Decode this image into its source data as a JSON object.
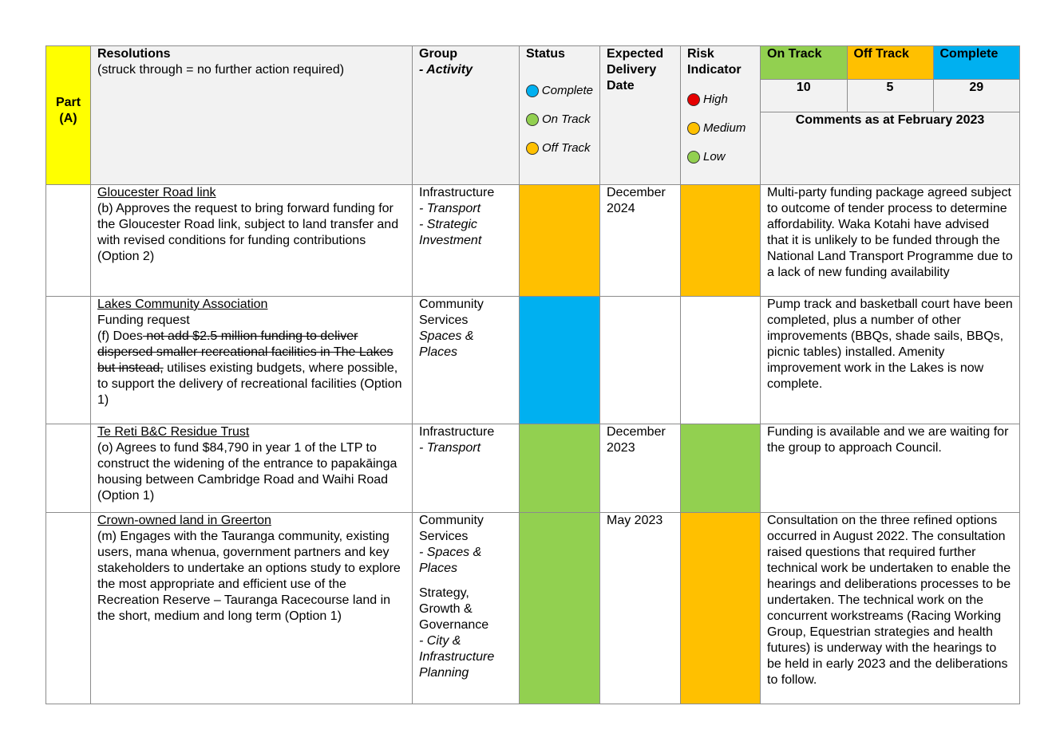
{
  "header": {
    "part": "Part (A)",
    "resolutions": "Resolutions",
    "resolutions_note": "(struck through = no further action required)",
    "group": "Group",
    "activity": "- Activity",
    "status": "Status",
    "status_legend": [
      {
        "label": "Complete",
        "color": "#00b0f0"
      },
      {
        "label": "On Track",
        "color": "#92d050"
      },
      {
        "label": "Off Track",
        "color": "#ffc000"
      }
    ],
    "expected_delivery_date": "Expected Delivery Date",
    "risk_indicator": "Risk Indicator",
    "risk_legend": [
      {
        "label": "High",
        "color": "#e60000"
      },
      {
        "label": "Medium",
        "color": "#ffc000"
      },
      {
        "label": "Low",
        "color": "#92d050"
      }
    ],
    "summary": [
      {
        "label": "On Track",
        "count": "10",
        "color": "#92d050"
      },
      {
        "label": "Off Track",
        "count": "5",
        "color": "#ffc000"
      },
      {
        "label": "Complete",
        "count": "29",
        "color": "#00b0f0"
      }
    ],
    "comments_title": "Comments as at February 2023"
  },
  "rows": [
    {
      "title": "Gloucester Road link",
      "text_before": "(b) Approves the request to bring forward funding for the Gloucester Road link, subject to land transfer and with revised conditions for funding contributions (Option 2)",
      "group_main": "Infrastructure",
      "group_activity_lines": [
        "- Transport",
        "- Strategic Investment"
      ],
      "status_color": "#ffc000",
      "date": "December 2024",
      "risk_color": "#ffc000",
      "comment": "Multi-party funding package agreed subject to outcome of tender process to determine affordability. Waka Kotahi have advised that it is unlikely to be funded through the National Land Transport Programme due to a lack of new funding availability"
    },
    {
      "title": "Lakes Community Association",
      "subtitle": "Funding request",
      "text_before": "(f) Does",
      "text_struck": " not add $2.5 million funding to deliver dispersed smaller recreational facilities in The Lakes but instead,",
      "text_after": " utilises existing budgets, where possible, to support the delivery of recreational facilities (Option 1)",
      "group_main": "Community Services",
      "group_activity_lines": [
        "Spaces & Places"
      ],
      "status_color": "#00b0f0",
      "date": "",
      "risk_color": "#ffffff",
      "comment": "Pump track and basketball court have been completed, plus a number of other improvements (BBQs, shade sails, BBQs, picnic tables) installed. Amenity improvement work in the Lakes is now complete."
    },
    {
      "title": "Te Reti B&C Residue Trust",
      "text_before": "(o) Agrees to fund $84,790 in year 1 of the LTP to construct the widening of the entrance to papakāinga housing between Cambridge Road and Waihi Road (Option 1)",
      "group_main": "Infrastructure",
      "group_activity_lines": [
        "- Transport"
      ],
      "status_color": "#92d050",
      "date": "December 2023",
      "risk_color": "#92d050",
      "comment": "Funding is available and we are waiting for the group to approach Council."
    },
    {
      "title": "Crown-owned land in Greerton",
      "text_before": "(m)   Engages with the Tauranga community, existing users, mana whenua, government partners and key stakeholders to undertake an options study to explore the most appropriate and efficient use of the Recreation Reserve – Tauranga Racecourse land in the short, medium and long term (Option 1)",
      "group_main": "Community Services",
      "group_activity_lines": [
        "- Spaces & Places"
      ],
      "group2_main": "Strategy, Growth & Governance",
      "group2_activity_lines": [
        "- City & Infrastructure Planning"
      ],
      "status_color": "#92d050",
      "date": "May 2023",
      "risk_color": "#ffc000",
      "comment": "Consultation on the three refined options occurred in August 2022. The consultation raised questions that required further technical work be undertaken to enable the hearings and deliberations processes to be undertaken. The technical work on the concurrent workstreams (Racing Working Group, Equestrian strategies and health futures) is underway with the hearings to be held in early 2023 and the deliberations to follow."
    }
  ]
}
